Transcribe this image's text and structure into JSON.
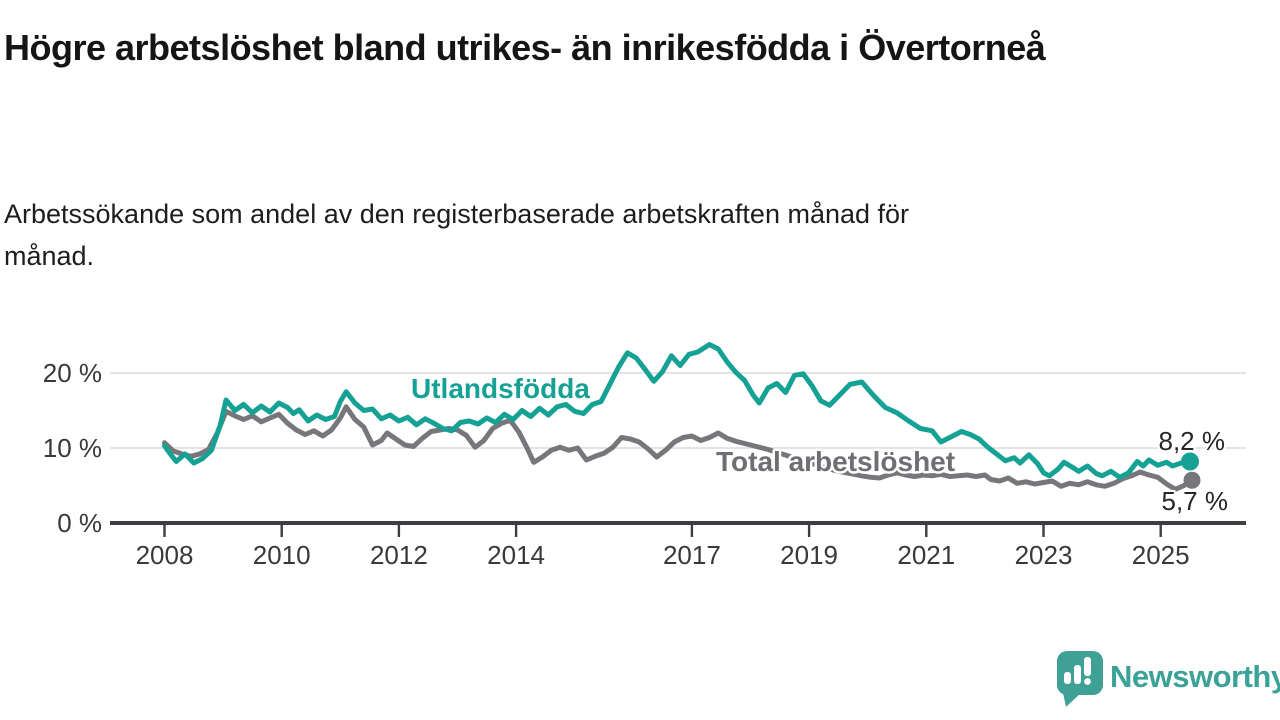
{
  "header": {
    "title": "Högre arbetslöshet bland utrikes- än inrikesfödda i Övertorneå",
    "subtitle": "Arbetssökande som andel av den registerbaserade arbetskraften månad för månad."
  },
  "footer": {
    "brand": "Newsworthy",
    "logo_icon": "newsworthy-speech-bubble-bar-chart-icon",
    "brand_color": "#3AA296"
  },
  "colors": {
    "background": "#ffffff",
    "axis": "#3e3e42",
    "gridline": "#dcdcdc",
    "tick_text": "#39393d",
    "title_text": "#151515",
    "series_foreign": "#16A195",
    "series_total_line": "#77777B",
    "series_total_label": "#6E6E73",
    "end_value_text": "#26262a"
  },
  "chart_data": {
    "type": "line",
    "title": "Högre arbetslöshet bland utrikes- än inrikesfödda i Övertorneå",
    "subtitle": "Arbetssökande som andel av den registerbaserade arbetskraften månad för månad.",
    "xlabel": "",
    "ylabel": "",
    "grid": "horizontal",
    "legend_position": "inline-labels",
    "x_axis": {
      "unit": "year",
      "ticks": [
        2008,
        2010,
        2012,
        2014,
        2017,
        2019,
        2021,
        2023,
        2025
      ],
      "tick_labels": [
        "2008",
        "2010",
        "2012",
        "2014",
        "2017",
        "2019",
        "2021",
        "2023",
        "2025"
      ],
      "range": [
        2008,
        2026.4
      ]
    },
    "y_axis": {
      "unit": "percent",
      "ticks": [
        0,
        10,
        20
      ],
      "tick_labels": [
        "0 %",
        "10 %",
        "20 %"
      ],
      "range": [
        0,
        27
      ]
    },
    "series": [
      {
        "name": "Utlandsfödda",
        "color": "#16A195",
        "end_label": "8,2 %",
        "end_value": 8.2,
        "points": [
          [
            2008.0,
            10.3
          ],
          [
            2008.1,
            9.2
          ],
          [
            2008.2,
            8.2
          ],
          [
            2008.35,
            9.2
          ],
          [
            2008.5,
            8.0
          ],
          [
            2008.65,
            8.6
          ],
          [
            2008.8,
            9.7
          ],
          [
            2008.95,
            13.0
          ],
          [
            2009.05,
            16.4
          ],
          [
            2009.2,
            15.0
          ],
          [
            2009.35,
            15.8
          ],
          [
            2009.5,
            14.7
          ],
          [
            2009.65,
            15.6
          ],
          [
            2009.8,
            14.8
          ],
          [
            2009.95,
            16.0
          ],
          [
            2010.1,
            15.4
          ],
          [
            2010.2,
            14.6
          ],
          [
            2010.3,
            15.1
          ],
          [
            2010.45,
            13.6
          ],
          [
            2010.6,
            14.4
          ],
          [
            2010.75,
            13.8
          ],
          [
            2010.9,
            14.2
          ],
          [
            2011.0,
            16.2
          ],
          [
            2011.1,
            17.5
          ],
          [
            2011.25,
            16.0
          ],
          [
            2011.4,
            15.0
          ],
          [
            2011.55,
            15.2
          ],
          [
            2011.7,
            13.9
          ],
          [
            2011.85,
            14.4
          ],
          [
            2012.0,
            13.6
          ],
          [
            2012.15,
            14.1
          ],
          [
            2012.3,
            13.1
          ],
          [
            2012.45,
            13.9
          ],
          [
            2012.6,
            13.3
          ],
          [
            2012.75,
            12.6
          ],
          [
            2012.9,
            12.3
          ],
          [
            2013.05,
            13.4
          ],
          [
            2013.2,
            13.6
          ],
          [
            2013.35,
            13.2
          ],
          [
            2013.5,
            14.0
          ],
          [
            2013.65,
            13.4
          ],
          [
            2013.8,
            14.5
          ],
          [
            2013.95,
            13.8
          ],
          [
            2014.1,
            15.0
          ],
          [
            2014.25,
            14.2
          ],
          [
            2014.4,
            15.3
          ],
          [
            2014.55,
            14.4
          ],
          [
            2014.7,
            15.5
          ],
          [
            2014.85,
            15.8
          ],
          [
            2015.0,
            14.9
          ],
          [
            2015.15,
            14.6
          ],
          [
            2015.3,
            15.8
          ],
          [
            2015.45,
            16.2
          ],
          [
            2015.6,
            18.5
          ],
          [
            2015.75,
            20.8
          ],
          [
            2015.9,
            22.7
          ],
          [
            2016.05,
            22.0
          ],
          [
            2016.2,
            20.5
          ],
          [
            2016.35,
            18.9
          ],
          [
            2016.5,
            20.2
          ],
          [
            2016.65,
            22.3
          ],
          [
            2016.8,
            21.0
          ],
          [
            2016.95,
            22.5
          ],
          [
            2017.1,
            22.8
          ],
          [
            2017.3,
            23.8
          ],
          [
            2017.45,
            23.2
          ],
          [
            2017.6,
            21.5
          ],
          [
            2017.75,
            20.1
          ],
          [
            2017.9,
            19.0
          ],
          [
            2018.05,
            17.0
          ],
          [
            2018.15,
            16.0
          ],
          [
            2018.3,
            18.0
          ],
          [
            2018.45,
            18.6
          ],
          [
            2018.6,
            17.4
          ],
          [
            2018.75,
            19.7
          ],
          [
            2018.9,
            19.9
          ],
          [
            2019.05,
            18.3
          ],
          [
            2019.2,
            16.3
          ],
          [
            2019.35,
            15.7
          ],
          [
            2019.5,
            16.9
          ],
          [
            2019.7,
            18.5
          ],
          [
            2019.9,
            18.8
          ],
          [
            2020.1,
            17.0
          ],
          [
            2020.3,
            15.4
          ],
          [
            2020.5,
            14.7
          ],
          [
            2020.7,
            13.6
          ],
          [
            2020.9,
            12.6
          ],
          [
            2021.1,
            12.3
          ],
          [
            2021.25,
            10.8
          ],
          [
            2021.4,
            11.4
          ],
          [
            2021.6,
            12.2
          ],
          [
            2021.75,
            11.8
          ],
          [
            2021.9,
            11.2
          ],
          [
            2022.05,
            10.1
          ],
          [
            2022.2,
            9.2
          ],
          [
            2022.35,
            8.3
          ],
          [
            2022.5,
            8.7
          ],
          [
            2022.6,
            8.0
          ],
          [
            2022.75,
            9.1
          ],
          [
            2022.9,
            7.9
          ],
          [
            2023.0,
            6.7
          ],
          [
            2023.1,
            6.3
          ],
          [
            2023.25,
            7.2
          ],
          [
            2023.35,
            8.1
          ],
          [
            2023.5,
            7.4
          ],
          [
            2023.6,
            6.9
          ],
          [
            2023.75,
            7.6
          ],
          [
            2023.9,
            6.6
          ],
          [
            2024.0,
            6.3
          ],
          [
            2024.15,
            6.9
          ],
          [
            2024.3,
            6.1
          ],
          [
            2024.45,
            6.7
          ],
          [
            2024.6,
            8.2
          ],
          [
            2024.7,
            7.6
          ],
          [
            2024.8,
            8.4
          ],
          [
            2024.95,
            7.7
          ],
          [
            2025.1,
            8.1
          ],
          [
            2025.2,
            7.6
          ],
          [
            2025.35,
            8.0
          ],
          [
            2025.5,
            8.2
          ]
        ]
      },
      {
        "name": "Total arbetslöshet",
        "color": "#77777B",
        "label_color": "#6E6E73",
        "end_label": "5,7 %",
        "end_value": 5.7,
        "points": [
          [
            2008.0,
            10.7
          ],
          [
            2008.15,
            9.6
          ],
          [
            2008.3,
            9.2
          ],
          [
            2008.45,
            8.9
          ],
          [
            2008.6,
            9.2
          ],
          [
            2008.75,
            9.8
          ],
          [
            2008.9,
            12.0
          ],
          [
            2009.05,
            14.9
          ],
          [
            2009.2,
            14.3
          ],
          [
            2009.35,
            13.8
          ],
          [
            2009.5,
            14.3
          ],
          [
            2009.65,
            13.5
          ],
          [
            2009.8,
            14.0
          ],
          [
            2009.95,
            14.5
          ],
          [
            2010.1,
            13.3
          ],
          [
            2010.25,
            12.4
          ],
          [
            2010.4,
            11.8
          ],
          [
            2010.55,
            12.3
          ],
          [
            2010.7,
            11.6
          ],
          [
            2010.85,
            12.4
          ],
          [
            2011.0,
            14.0
          ],
          [
            2011.1,
            15.5
          ],
          [
            2011.25,
            13.8
          ],
          [
            2011.4,
            12.8
          ],
          [
            2011.55,
            10.4
          ],
          [
            2011.7,
            11.0
          ],
          [
            2011.8,
            12.0
          ],
          [
            2011.95,
            11.2
          ],
          [
            2012.1,
            10.4
          ],
          [
            2012.25,
            10.2
          ],
          [
            2012.4,
            11.3
          ],
          [
            2012.55,
            12.2
          ],
          [
            2012.7,
            12.4
          ],
          [
            2012.85,
            12.6
          ],
          [
            2013.0,
            12.4
          ],
          [
            2013.15,
            11.7
          ],
          [
            2013.3,
            10.1
          ],
          [
            2013.45,
            11.0
          ],
          [
            2013.6,
            12.6
          ],
          [
            2013.75,
            13.3
          ],
          [
            2013.9,
            13.7
          ],
          [
            2014.05,
            12.1
          ],
          [
            2014.2,
            9.8
          ],
          [
            2014.3,
            8.1
          ],
          [
            2014.45,
            8.8
          ],
          [
            2014.6,
            9.7
          ],
          [
            2014.75,
            10.1
          ],
          [
            2014.9,
            9.7
          ],
          [
            2015.05,
            10.0
          ],
          [
            2015.2,
            8.4
          ],
          [
            2015.35,
            8.9
          ],
          [
            2015.5,
            9.3
          ],
          [
            2015.65,
            10.1
          ],
          [
            2015.8,
            11.4
          ],
          [
            2015.95,
            11.2
          ],
          [
            2016.1,
            10.8
          ],
          [
            2016.25,
            9.9
          ],
          [
            2016.4,
            8.8
          ],
          [
            2016.55,
            9.7
          ],
          [
            2016.7,
            10.8
          ],
          [
            2016.85,
            11.4
          ],
          [
            2017.0,
            11.6
          ],
          [
            2017.15,
            11.0
          ],
          [
            2017.3,
            11.4
          ],
          [
            2017.45,
            12.0
          ],
          [
            2017.6,
            11.3
          ],
          [
            2017.75,
            10.9
          ],
          [
            2017.9,
            10.6
          ],
          [
            2018.1,
            10.2
          ],
          [
            2018.3,
            9.8
          ],
          [
            2018.5,
            9.3
          ],
          [
            2018.7,
            8.8
          ],
          [
            2018.9,
            8.4
          ],
          [
            2019.1,
            7.8
          ],
          [
            2019.3,
            7.3
          ],
          [
            2019.5,
            6.9
          ],
          [
            2019.7,
            6.6
          ],
          [
            2019.9,
            6.3
          ],
          [
            2020.05,
            6.1
          ],
          [
            2020.2,
            6.0
          ],
          [
            2020.35,
            6.4
          ],
          [
            2020.5,
            6.7
          ],
          [
            2020.65,
            6.4
          ],
          [
            2020.8,
            6.2
          ],
          [
            2020.95,
            6.4
          ],
          [
            2021.1,
            6.3
          ],
          [
            2021.25,
            6.5
          ],
          [
            2021.4,
            6.2
          ],
          [
            2021.55,
            6.3
          ],
          [
            2021.7,
            6.4
          ],
          [
            2021.85,
            6.2
          ],
          [
            2022.0,
            6.4
          ],
          [
            2022.1,
            5.8
          ],
          [
            2022.25,
            5.6
          ],
          [
            2022.4,
            6.0
          ],
          [
            2022.55,
            5.3
          ],
          [
            2022.7,
            5.5
          ],
          [
            2022.85,
            5.2
          ],
          [
            2023.0,
            5.4
          ],
          [
            2023.15,
            5.6
          ],
          [
            2023.3,
            4.9
          ],
          [
            2023.45,
            5.3
          ],
          [
            2023.6,
            5.1
          ],
          [
            2023.75,
            5.5
          ],
          [
            2023.9,
            5.1
          ],
          [
            2024.05,
            4.9
          ],
          [
            2024.2,
            5.3
          ],
          [
            2024.35,
            5.9
          ],
          [
            2024.5,
            6.3
          ],
          [
            2024.65,
            6.8
          ],
          [
            2024.8,
            6.4
          ],
          [
            2024.95,
            6.1
          ],
          [
            2025.1,
            5.2
          ],
          [
            2025.25,
            4.5
          ],
          [
            2025.4,
            5.0
          ],
          [
            2025.5,
            5.7
          ]
        ]
      }
    ]
  }
}
